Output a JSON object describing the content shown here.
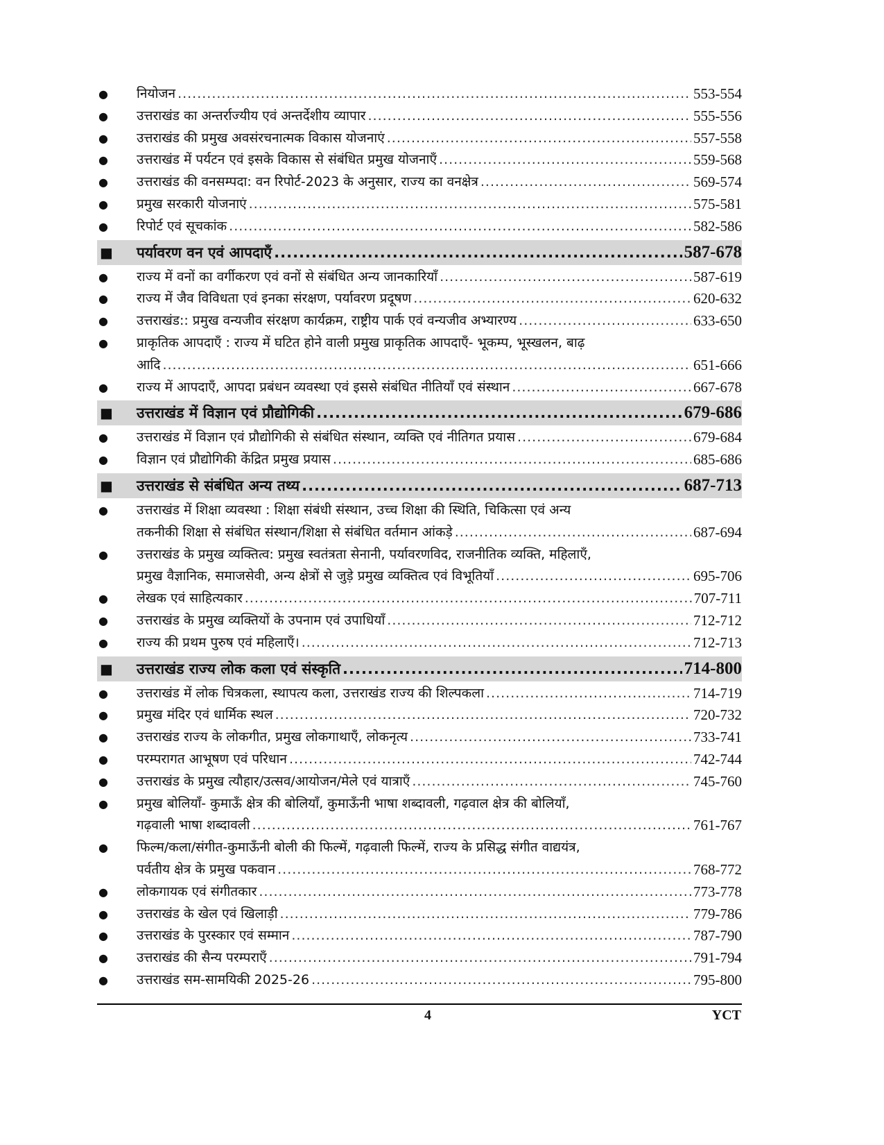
{
  "entries": [
    {
      "type": "item",
      "lines": [
        "नियोजन"
      ],
      "pages": "553-554"
    },
    {
      "type": "item",
      "lines": [
        "उत्तराखंड का अन्तर्राज्यीय एवं अन्तर्देशीय व्यापार"
      ],
      "pages": "555-556"
    },
    {
      "type": "item",
      "lines": [
        "उत्तराखंड की प्रमुख अवसंरचनात्मक विकास योजनाएं"
      ],
      "pages": "557-558"
    },
    {
      "type": "item",
      "lines": [
        "उत्तराखंड में पर्यटन एवं इसके विकास से संबंधित प्रमुख योजनाएँ"
      ],
      "pages": "559-568"
    },
    {
      "type": "item",
      "lines": [
        "उत्तराखंड की वनसम्पदा: वन रिपोर्ट-2023 के अनुसार, राज्य का वनक्षेत्र"
      ],
      "pages": "569-574"
    },
    {
      "type": "item",
      "lines": [
        "प्रमुख सरकारी योजनाएं"
      ],
      "pages": "575-581"
    },
    {
      "type": "item",
      "lines": [
        "रिपोर्ट एवं सूचकांक"
      ],
      "pages": "582-586"
    },
    {
      "type": "section",
      "lines": [
        "पर्यावरण वन एवं आपदाएँ"
      ],
      "pages": "587-678"
    },
    {
      "type": "item",
      "lines": [
        "राज्य में वनों का वर्गीकरण एवं वनों से संबंधित अन्य जानकारियाँ"
      ],
      "pages": "587-619"
    },
    {
      "type": "item",
      "lines": [
        "राज्य में जैव विविधता एवं इनका संरक्षण, पर्यावरण प्रदूषण"
      ],
      "pages": "620-632"
    },
    {
      "type": "item",
      "lines": [
        "उत्तराखंड:: प्रमुख वन्यजीव संरक्षण कार्यक्रम, राष्ट्रीय पार्क एवं वन्यजीव अभ्यारण्य"
      ],
      "pages": "633-650"
    },
    {
      "type": "item",
      "lines": [
        "प्राकृतिक आपदाएँ : राज्य में घटित होने वाली प्रमुख प्राकृतिक आपदाएँ- भूकम्प, भूस्खलन, बाढ़",
        "आदि"
      ],
      "pages": "651-666"
    },
    {
      "type": "item",
      "lines": [
        "राज्य में आपदाएँ, आपदा प्रबंधन व्यवस्था एवं इससे संबंधित नीतियाँ एवं संस्थान"
      ],
      "pages": "667-678"
    },
    {
      "type": "section",
      "lines": [
        "उत्तराखंड में विज्ञान एवं प्रौद्योगिकी"
      ],
      "pages": "679-686"
    },
    {
      "type": "item",
      "lines": [
        "उत्तराखंड में विज्ञान एवं प्रौद्योगिकी से संबंधित संस्थान, व्यक्ति एवं नीतिगत प्रयास"
      ],
      "pages": "679-684"
    },
    {
      "type": "item",
      "lines": [
        "विज्ञान एवं प्रौद्योगिकी केंद्रित प्रमुख प्रयास"
      ],
      "pages": "685-686"
    },
    {
      "type": "section",
      "lines": [
        "उत्तराखंड से संबंधित अन्य तथ्य"
      ],
      "pages": "687-713"
    },
    {
      "type": "item",
      "lines": [
        "उत्तराखंड में शिक्षा व्यवस्था : शिक्षा संबंधी संस्थान, उच्च शिक्षा की स्थिति, चिकित्सा एवं अन्य",
        "तकनीकी शिक्षा से संबंधित संस्थान/शिक्षा से संबंधित वर्तमान आंकड़े"
      ],
      "pages": "687-694"
    },
    {
      "type": "item",
      "lines": [
        "उत्तराखंड के प्रमुख व्यक्तित्व: प्रमुख स्वतंत्रता सेनानी, पर्यावरणविद, राजनीतिक व्यक्ति, महिलाएँ,",
        "प्रमुख वैज्ञानिक, समाजसेवी, अन्य क्षेत्रों से जुड़े प्रमुख व्यक्तित्व एवं विभूतियाँ"
      ],
      "pages": "695-706"
    },
    {
      "type": "item",
      "lines": [
        "लेखक एवं साहित्यकार"
      ],
      "pages": "707-711"
    },
    {
      "type": "item",
      "lines": [
        "उत्तराखंड के प्रमुख व्यक्तियों के उपनाम एवं उपाधियाँ"
      ],
      "pages": "712-712"
    },
    {
      "type": "item",
      "lines": [
        "राज्य की प्रथम पुरुष एवं महिलाएँ।"
      ],
      "pages": "712-713"
    },
    {
      "type": "section",
      "lines": [
        "उत्तराखंड राज्य लोक कला एवं संस्कृति"
      ],
      "pages": "714-800"
    },
    {
      "type": "item",
      "lines": [
        "उत्तराखंड में लोक चित्रकला, स्थापत्य कला, उत्तराखंड राज्य की शिल्पकला"
      ],
      "pages": "714-719"
    },
    {
      "type": "item",
      "lines": [
        "प्रमुख मंदिर एवं धार्मिक स्थल"
      ],
      "pages": "720-732"
    },
    {
      "type": "item",
      "lines": [
        "उत्तराखंड राज्य के लोकगीत, प्रमुख लोकगाथाएँ, लोकनृत्य"
      ],
      "pages": "733-741"
    },
    {
      "type": "item",
      "lines": [
        "परम्परागत आभूषण एवं परिधान"
      ],
      "pages": "742-744"
    },
    {
      "type": "item",
      "lines": [
        "उत्तराखंड के प्रमुख त्यौहार/उत्सव/आयोजन/मेले एवं यात्राएँ"
      ],
      "pages": "745-760"
    },
    {
      "type": "item",
      "lines": [
        "प्रमुख बोलियाँ- कुमाऊँ क्षेत्र की बोलियाँ, कुमाऊँनी भाषा शब्दावली, गढ़वाल क्षेत्र की बोलियाँ,",
        "गढ़वाली भाषा शब्दावली"
      ],
      "pages": "761-767"
    },
    {
      "type": "item",
      "lines": [
        "फिल्म/कला/संगीत-कुमाऊँनी बोली की फिल्में, गढ़वाली फिल्में, राज्य के प्रसिद्ध संगीत वाद्ययंत्र,",
        "पर्वतीय क्षेत्र के प्रमुख पकवान"
      ],
      "pages": "768-772"
    },
    {
      "type": "item",
      "lines": [
        "लोकगायक एवं संगीतकार"
      ],
      "pages": "773-778"
    },
    {
      "type": "item",
      "lines": [
        "उत्तराखंड के खेल एवं खिलाड़ी"
      ],
      "pages": "779-786"
    },
    {
      "type": "item",
      "lines": [
        "उत्तराखंड के पुरस्कार एवं सम्मान"
      ],
      "pages": "787-790"
    },
    {
      "type": "item",
      "lines": [
        "उत्तराखंड की सैन्य परम्पराएँ"
      ],
      "pages": "791-794"
    },
    {
      "type": "item",
      "lines": [
        "उत्तराखंड सम-सामयिकी 2025-26"
      ],
      "pages": "795-800"
    }
  ],
  "footer": {
    "page_number": "4",
    "brand": "YCT"
  },
  "icons": {
    "item_bullet": "●",
    "section_bullet": "■"
  },
  "colors": {
    "section_bg": "#d6d6d6"
  }
}
